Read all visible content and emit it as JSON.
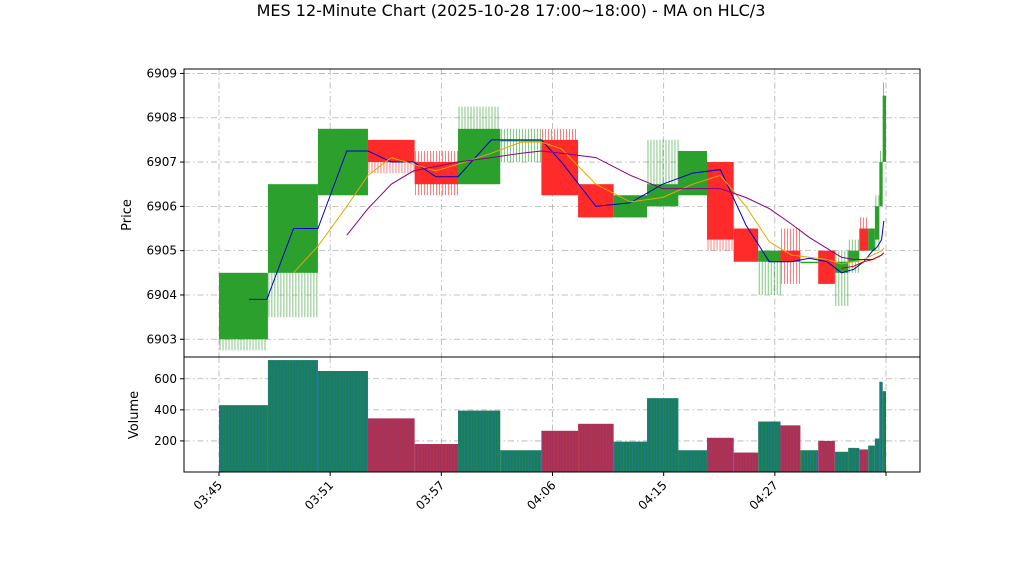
{
  "chart_data": {
    "type": "candlestick",
    "title": "MES 12-Minute Chart (2025-10-28 17:00~18:00) - MA on HLC/3",
    "price_panel": {
      "ylabel": "Price",
      "ylim": [
        6902.6,
        6909.1
      ],
      "yticks": [
        6903,
        6904,
        6905,
        6906,
        6907,
        6908,
        6909
      ],
      "grid": true
    },
    "volume_panel": {
      "ylabel": "Volume",
      "ylim": [
        0,
        740
      ],
      "yticks": [
        200,
        400,
        600
      ],
      "grid": true
    },
    "xlim": [
      0,
      60
    ],
    "xticks": [
      {
        "x": 0,
        "label": "03:45"
      },
      {
        "x": 10,
        "label": "03:51"
      },
      {
        "x": 20,
        "label": "03:57"
      },
      {
        "x": 30,
        "label": "04:06"
      },
      {
        "x": 40,
        "label": "04:15"
      },
      {
        "x": 50,
        "label": "04:27"
      },
      {
        "x": 60,
        "label": ""
      }
    ],
    "colors": {
      "up": "#2ca02c",
      "down": "#ff2a2a",
      "up_volume": "#1f77b4",
      "down_volume": "#9b3b7a",
      "grid": "#b0b0b0"
    },
    "candles": [
      {
        "x0": 0.0,
        "x1": 4.4,
        "open": 6903.0,
        "high": 6904.5,
        "low": 6902.75,
        "close": 6904.5,
        "volume": 430
      },
      {
        "x0": 4.4,
        "x1": 8.9,
        "open": 6904.5,
        "high": 6906.5,
        "low": 6903.5,
        "close": 6906.5,
        "volume": 720
      },
      {
        "x0": 8.9,
        "x1": 13.4,
        "open": 6906.25,
        "high": 6907.75,
        "low": 6906.25,
        "close": 6907.75,
        "volume": 650
      },
      {
        "x0": 13.4,
        "x1": 17.6,
        "open": 6907.5,
        "high": 6907.5,
        "low": 6906.75,
        "close": 6907.0,
        "volume": 345
      },
      {
        "x0": 17.6,
        "x1": 21.5,
        "open": 6907.0,
        "high": 6907.25,
        "low": 6906.25,
        "close": 6906.5,
        "volume": 180
      },
      {
        "x0": 21.5,
        "x1": 25.3,
        "open": 6906.5,
        "high": 6908.25,
        "low": 6906.5,
        "close": 6907.75,
        "volume": 395
      },
      {
        "x0": 25.3,
        "x1": 29.0,
        "open": 6907.5,
        "high": 6907.75,
        "low": 6907.0,
        "close": 6907.5,
        "volume": 140
      },
      {
        "x0": 29.0,
        "x1": 32.3,
        "open": 6907.5,
        "high": 6907.75,
        "low": 6906.25,
        "close": 6906.25,
        "volume": 265
      },
      {
        "x0": 32.3,
        "x1": 35.5,
        "open": 6906.5,
        "high": 6906.5,
        "low": 6905.75,
        "close": 6905.75,
        "volume": 310
      },
      {
        "x0": 35.5,
        "x1": 38.5,
        "open": 6905.75,
        "high": 6906.25,
        "low": 6905.75,
        "close": 6906.25,
        "volume": 195
      },
      {
        "x0": 38.5,
        "x1": 41.3,
        "open": 6906.0,
        "high": 6907.5,
        "low": 6906.0,
        "close": 6906.5,
        "volume": 475
      },
      {
        "x0": 41.3,
        "x1": 43.9,
        "open": 6906.25,
        "high": 6907.25,
        "low": 6906.25,
        "close": 6907.25,
        "volume": 140
      },
      {
        "x0": 43.9,
        "x1": 46.3,
        "open": 6907.0,
        "high": 6907.0,
        "low": 6905.0,
        "close": 6905.25,
        "volume": 220
      },
      {
        "x0": 46.3,
        "x1": 48.5,
        "open": 6905.5,
        "high": 6905.5,
        "low": 6904.75,
        "close": 6904.75,
        "volume": 125
      },
      {
        "x0": 48.5,
        "x1": 50.5,
        "open": 6904.75,
        "high": 6905.0,
        "low": 6904.0,
        "close": 6905.0,
        "volume": 325
      },
      {
        "x0": 50.5,
        "x1": 52.3,
        "open": 6905.0,
        "high": 6905.5,
        "low": 6904.25,
        "close": 6904.75,
        "volume": 300
      },
      {
        "x0": 52.3,
        "x1": 53.9,
        "open": 6904.75,
        "high": 6904.75,
        "low": 6904.75,
        "close": 6904.75,
        "volume": 140
      },
      {
        "x0": 53.9,
        "x1": 55.4,
        "open": 6905.0,
        "high": 6905.0,
        "low": 6904.25,
        "close": 6904.25,
        "volume": 200
      },
      {
        "x0": 55.4,
        "x1": 56.6,
        "open": 6904.5,
        "high": 6905.0,
        "low": 6903.75,
        "close": 6904.75,
        "volume": 130
      },
      {
        "x0": 56.6,
        "x1": 57.6,
        "open": 6904.75,
        "high": 6905.25,
        "low": 6904.5,
        "close": 6905.0,
        "volume": 155
      },
      {
        "x0": 57.6,
        "x1": 58.4,
        "open": 6905.5,
        "high": 6905.75,
        "low": 6905.0,
        "close": 6905.0,
        "volume": 145
      },
      {
        "x0": 58.4,
        "x1": 59.0,
        "open": 6905.0,
        "high": 6905.5,
        "low": 6905.0,
        "close": 6905.5,
        "volume": 170
      },
      {
        "x0": 59.0,
        "x1": 59.4,
        "open": 6905.25,
        "high": 6906.25,
        "low": 6905.0,
        "close": 6906.0,
        "volume": 215
      },
      {
        "x0": 59.4,
        "x1": 59.7,
        "open": 6906.0,
        "high": 6907.25,
        "low": 6906.0,
        "close": 6907.0,
        "volume": 580
      },
      {
        "x0": 59.7,
        "x1": 60.0,
        "open": 6907.0,
        "high": 6908.8,
        "low": 6907.0,
        "close": 6908.5,
        "volume": 520
      }
    ],
    "series": [
      {
        "color": "#0000cc",
        "x": [
          2.7,
          4.3,
          6.7,
          8.9,
          11.5,
          13.4,
          15.5,
          17.5,
          19.5,
          21.5,
          24.5,
          27.2,
          29.0,
          30.8,
          33.9,
          37.0,
          39.9,
          42.6,
          45.1,
          47.4,
          49.5,
          51.5,
          53.1,
          54.7,
          56.0,
          57.1,
          58.0,
          58.8,
          59.2,
          59.6,
          59.8
        ],
        "values": [
          6903.9,
          6903.9,
          6905.5,
          6905.5,
          6907.25,
          6907.25,
          6907.0,
          6907.0,
          6906.67,
          6906.67,
          6907.5,
          6907.5,
          6907.5,
          6907.0,
          6906.0,
          6906.08,
          6906.5,
          6906.75,
          6906.83,
          6905.58,
          6904.75,
          6904.75,
          6904.83,
          6904.75,
          6904.5,
          6904.58,
          6904.75,
          6905.0,
          6905.08,
          6905.25,
          6905.67
        ]
      },
      {
        "color": "#e6a700",
        "x": [
          6.7,
          8.9,
          11.5,
          13.4,
          15.5,
          17.5,
          19.5,
          21.5,
          24.5,
          27.2,
          29.0,
          30.8,
          33.9,
          37.0,
          39.9,
          42.6,
          45.1,
          47.4,
          49.5,
          51.5,
          53.1,
          54.7,
          56.0,
          57.1,
          58.0,
          58.8,
          59.2,
          59.6,
          59.8
        ],
        "values": [
          6904.5,
          6905.1,
          6906.0,
          6906.7,
          6907.1,
          6906.95,
          6906.8,
          6906.95,
          6907.2,
          6907.45,
          6907.45,
          6907.3,
          6906.5,
          6906.1,
          6906.2,
          6906.5,
          6906.7,
          6906.0,
          6905.2,
          6904.9,
          6904.85,
          6904.8,
          6904.7,
          6904.75,
          6904.8,
          6904.9,
          6904.95,
          6905.0,
          6905.05
        ]
      },
      {
        "color": "#8b008b",
        "x": [
          11.5,
          13.4,
          15.5,
          17.5,
          19.5,
          21.5,
          24.5,
          27.2,
          29.0,
          30.8,
          33.9,
          37.0,
          39.9,
          42.6,
          45.1,
          47.4,
          49.5,
          51.5,
          53.1,
          54.7,
          56.0,
          57.1,
          58.0,
          58.8,
          59.2,
          59.6,
          59.8
        ],
        "values": [
          6905.35,
          6905.95,
          6906.5,
          6906.8,
          6906.9,
          6907.0,
          6907.1,
          6907.2,
          6907.25,
          6907.2,
          6907.1,
          6906.7,
          6906.4,
          6906.4,
          6906.4,
          6906.2,
          6905.95,
          6905.6,
          6905.3,
          6905.05,
          6904.85,
          6904.8,
          6904.8,
          6904.8,
          6904.85,
          6904.9,
          6904.95
        ]
      },
      {
        "color": "#cc0000",
        "x": [
          56.0,
          57.1,
          58.0,
          58.8,
          59.2,
          59.6,
          59.8
        ],
        "values": [
          6904.6,
          6904.65,
          6904.75,
          6904.8,
          6904.85,
          6904.9,
          6904.95
        ]
      }
    ]
  }
}
